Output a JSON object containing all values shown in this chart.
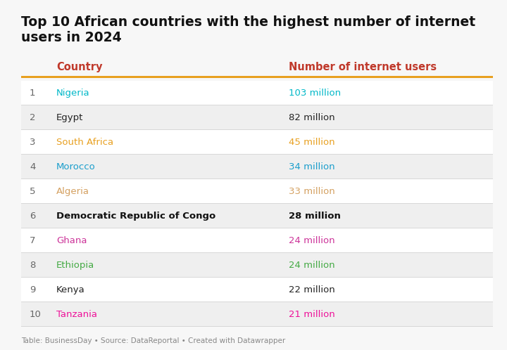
{
  "title_line1": "Top 10 African countries with the highest number of internet",
  "title_line2": "users in 2024",
  "col_header_country": "Country",
  "col_header_users": "Number of internet users",
  "header_color": "#c0392b",
  "header_line_color": "#e8a020",
  "footer_text": "Table: BusinessDay • Source: DataReportal • Created with Datawrapper",
  "background_color": "#f7f7f7",
  "rows": [
    {
      "rank": "1",
      "country": "Nigeria",
      "users": "103 million",
      "country_color": "#00b8c8",
      "users_color": "#00b8c8",
      "bold": false,
      "row_bg": "#ffffff"
    },
    {
      "rank": "2",
      "country": "Egypt",
      "users": "82 million",
      "country_color": "#222222",
      "users_color": "#222222",
      "bold": false,
      "row_bg": "#efefef"
    },
    {
      "rank": "3",
      "country": "South Africa",
      "users": "45 million",
      "country_color": "#e8a020",
      "users_color": "#e8a020",
      "bold": false,
      "row_bg": "#ffffff"
    },
    {
      "rank": "4",
      "country": "Morocco",
      "users": "34 million",
      "country_color": "#1a9ecc",
      "users_color": "#1a9ecc",
      "bold": false,
      "row_bg": "#efefef"
    },
    {
      "rank": "5",
      "country": "Algeria",
      "users": "33 million",
      "country_color": "#d4a060",
      "users_color": "#d4a060",
      "bold": false,
      "row_bg": "#ffffff"
    },
    {
      "rank": "6",
      "country": "Democratic Republic of Congo",
      "users": "28 million",
      "country_color": "#111111",
      "users_color": "#111111",
      "bold": true,
      "row_bg": "#efefef"
    },
    {
      "rank": "7",
      "country": "Ghana",
      "users": "24 million",
      "country_color": "#cc3399",
      "users_color": "#cc3399",
      "bold": false,
      "row_bg": "#ffffff"
    },
    {
      "rank": "8",
      "country": "Ethiopia",
      "users": "24 million",
      "country_color": "#44aa44",
      "users_color": "#44aa44",
      "bold": false,
      "row_bg": "#efefef"
    },
    {
      "rank": "9",
      "country": "Kenya",
      "users": "22 million",
      "country_color": "#222222",
      "users_color": "#222222",
      "bold": false,
      "row_bg": "#ffffff"
    },
    {
      "rank": "10",
      "country": "Tanzania",
      "users": "21 million",
      "country_color": "#ee1199",
      "users_color": "#ee1199",
      "bold": false,
      "row_bg": "#efefef"
    }
  ]
}
